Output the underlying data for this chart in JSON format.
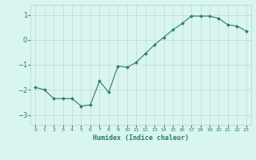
{
  "x": [
    0,
    1,
    2,
    3,
    4,
    5,
    6,
    7,
    8,
    9,
    10,
    11,
    12,
    13,
    14,
    15,
    16,
    17,
    18,
    19,
    20,
    21,
    22,
    23
  ],
  "y": [
    -1.9,
    -2.0,
    -2.35,
    -2.35,
    -2.35,
    -2.65,
    -2.6,
    -1.65,
    -2.1,
    -1.05,
    -1.1,
    -0.9,
    -0.55,
    -0.2,
    0.1,
    0.4,
    0.65,
    0.95,
    0.95,
    0.95,
    0.85,
    0.6,
    0.55,
    0.35
  ],
  "line_color": "#2d7a6e",
  "marker": "D",
  "marker_size": 2,
  "bg_color": "#d8f5f0",
  "grid_color": "#c0d8d4",
  "tick_color": "#2d7a6e",
  "label_color": "#2d7a6e",
  "xlabel": "Humidex (Indice chaleur)",
  "yticks": [
    -3,
    -2,
    -1,
    0,
    1
  ],
  "ylim": [
    -3.4,
    1.4
  ],
  "xlim": [
    -0.5,
    23.5
  ],
  "xtick_labels": [
    "0",
    "1",
    "2",
    "3",
    "4",
    "5",
    "6",
    "7",
    "8",
    "9",
    "10",
    "11",
    "12",
    "13",
    "14",
    "15",
    "16",
    "17",
    "18",
    "19",
    "20",
    "21",
    "22",
    "23"
  ]
}
